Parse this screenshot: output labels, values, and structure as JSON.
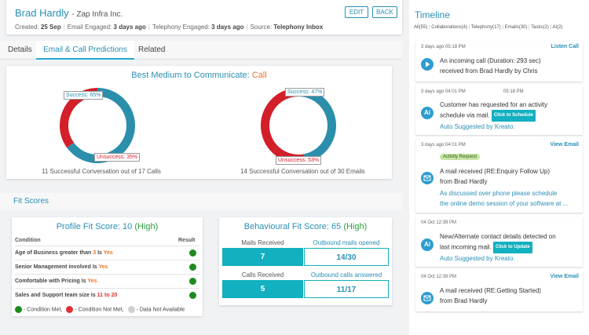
{
  "header": {
    "name": "Brad Hardly",
    "company": "- Zap Infra Inc.",
    "created_label": "Created:",
    "created_value": "25 Sep",
    "email_label": "Email Engaged:",
    "email_value": "3 days ago",
    "tele_label": "Telephony Engaged:",
    "tele_value": "3 days ago",
    "source_label": "Source:",
    "source_value": "Telephony Inbox",
    "edit": "EDIT",
    "back": "BACK"
  },
  "tabs": [
    "Details",
    "Email & Call Predictions",
    "Related"
  ],
  "best_medium": {
    "title": "Best Medium to Communicate:",
    "value": "Call"
  },
  "chart_data": [
    {
      "type": "pie",
      "categories": [
        "Success",
        "Unsuccess"
      ],
      "values": [
        65,
        35
      ],
      "labels": [
        "Success: 65%",
        "Unsuccess: 35%"
      ],
      "colors": [
        "#2b8fac",
        "#d21f2a"
      ],
      "caption": "11 Successful Conversation out of 17 Calls"
    },
    {
      "type": "pie",
      "categories": [
        "Success",
        "Unsuccess"
      ],
      "values": [
        47,
        53
      ],
      "labels": [
        "Success: 47%",
        "Unsuccess: 53%"
      ],
      "colors": [
        "#2b8fac",
        "#d21f2a"
      ],
      "caption": "14 Successful Conversation out of 30 Emails"
    }
  ],
  "fit_scores": {
    "heading": "Fit Scores",
    "profile": {
      "title": "Profile Fit Score: 10",
      "level": "(High)",
      "col_condition": "Condition",
      "col_result": "Result",
      "rows": [
        {
          "a": "Age of Business greater than",
          "b": "3",
          "c": "Is",
          "d": "Yes"
        },
        {
          "a": "Senior Management involved",
          "b": "",
          "c": "Is",
          "d": "Yes"
        },
        {
          "a": "Comfortable with Pricing",
          "b": "",
          "c": "Is",
          "d": "Yes"
        },
        {
          "a": "Sales and Support team size",
          "b": "",
          "c": "Is",
          "d": "11 to 20"
        }
      ],
      "legend_met": "- Condition Met,",
      "legend_not_met": "- Condition Not Met,",
      "legend_na": "- Data Not Available"
    },
    "behavioural": {
      "title": "Behavioural Fit Score: 65",
      "level": "(High)",
      "mails_received_label": "Mails Received",
      "mails_received": "7",
      "outbound_mails_label": "Outbound mails opened",
      "outbound_mails": "14/30",
      "calls_received_label": "Calls Received",
      "calls_received": "5",
      "outbound_calls_label": "Outbound calls answered",
      "outbound_calls": "11/17"
    }
  },
  "timeline": {
    "title": "Timeline",
    "filters": [
      "All(55)",
      "Collaborations(4)",
      "Telephony(17)",
      "Emails(30)",
      "Tasks(2)",
      "AI(2)"
    ],
    "items": [
      {
        "ts": "3 days ago 05:18 PM",
        "action": "Listen Call",
        "line1": "An incoming call (Duration: 293 sec)",
        "line2": "received from Brad Hardly by Chris"
      },
      {
        "ts": "3 days ago 04:01 PM",
        "ts2": "05:18 PM",
        "icon": "Ai",
        "line1": "Customer has requested for an activity",
        "line2": "schedule via mail.",
        "button": "Click to Schedule",
        "sub": "Auto Suggested by Kreato."
      },
      {
        "ts": "3 days ago 04:01 PM",
        "action": "View Email",
        "badge": "Activity Request",
        "line1": "A mail received (RE:Enquiry Follow Up)",
        "line2": "from Brad Hardly",
        "sub1": "As discussed over phone please schedule",
        "sub2": "the online demo session of your software at ..."
      },
      {
        "ts": "04 Oct 12:39 PM",
        "icon": "Ai",
        "line1": "New/Alternate contact details detected on",
        "line2": "last incoming mail.",
        "button": "Click to Update",
        "sub": "Auto Suggested by Kreato."
      },
      {
        "ts": "04 Oct 12:39 PM",
        "action": "View Email",
        "line1": "A mail received (RE:Getting Started)",
        "line2": "from Brad Hardly"
      }
    ]
  }
}
